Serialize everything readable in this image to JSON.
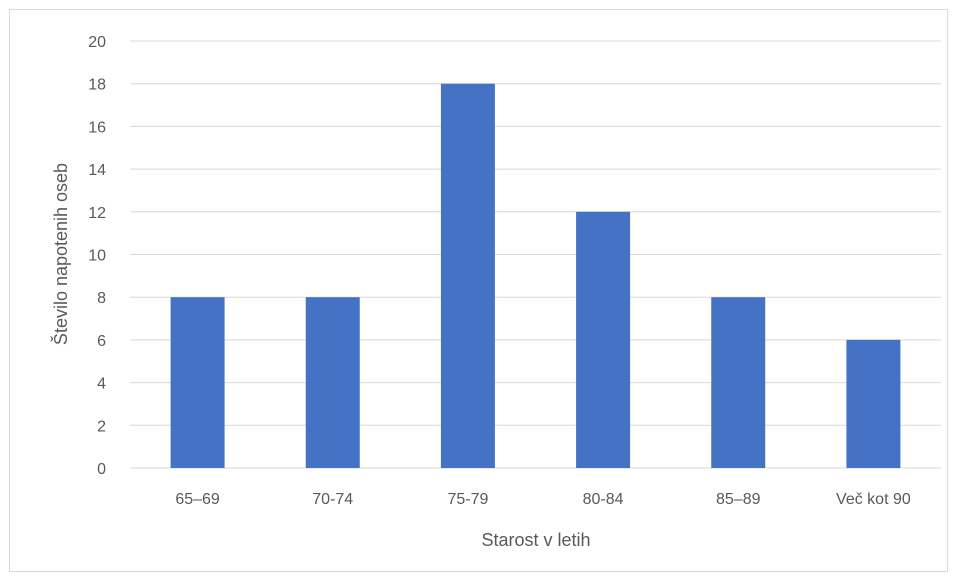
{
  "chart_data": {
    "type": "bar",
    "categories": [
      "65–69",
      "70-74",
      "75-79",
      "80-84",
      "85–89",
      "Več kot 90"
    ],
    "values": [
      8,
      8,
      18,
      12,
      8,
      6
    ],
    "title": "",
    "xlabel": "Starost v letih",
    "ylabel": "Število napotenih oseb",
    "ylim": [
      0,
      20
    ],
    "yticks": [
      0,
      2,
      4,
      6,
      8,
      10,
      12,
      14,
      16,
      18,
      20
    ],
    "grid": true,
    "legend": "none",
    "bar_color": "#4472c4",
    "grid_color": "#d9d9d9",
    "text_color": "#595959"
  }
}
